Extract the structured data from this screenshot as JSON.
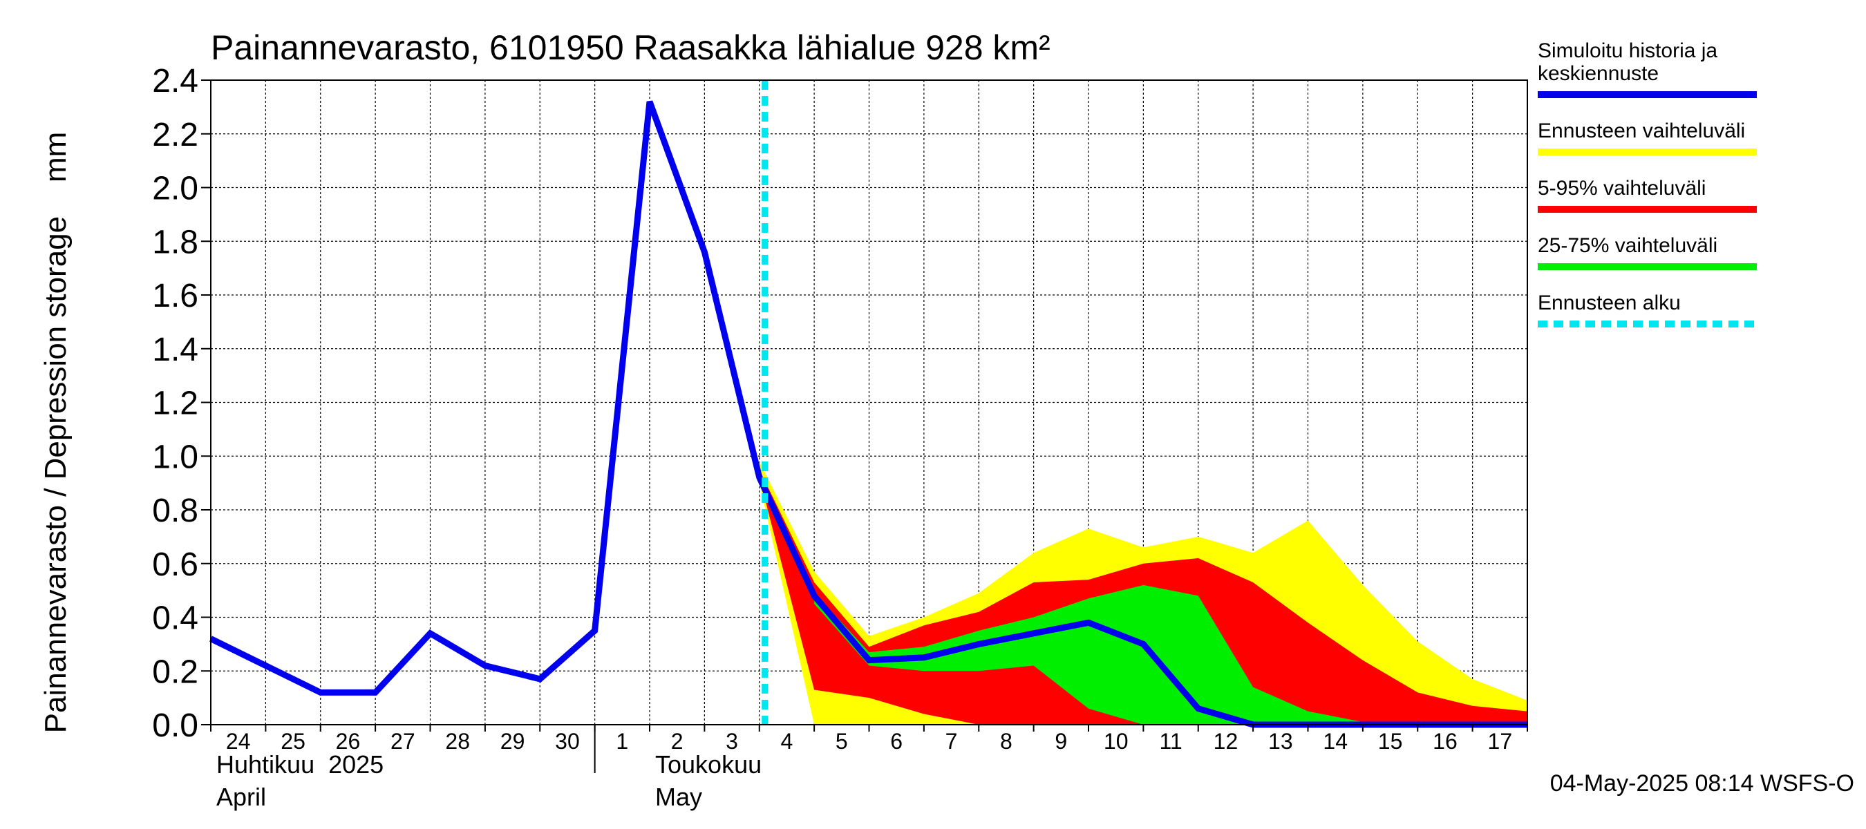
{
  "chart_data": {
    "type": "area",
    "title": "Painannevarasto, 6101950 Raasakka lähialue 928 km²",
    "ylabel": "Painannevarasto / Depression storage    mm",
    "ylim": [
      0,
      2.4
    ],
    "yticks": [
      "0.0",
      "0.2",
      "0.4",
      "0.6",
      "0.8",
      "1.0",
      "1.2",
      "1.4",
      "1.6",
      "1.8",
      "2.0",
      "2.2",
      "2.4"
    ],
    "x_range": [
      "2025-04-24",
      "2025-05-17"
    ],
    "day_labels": [
      "24",
      "25",
      "26",
      "27",
      "28",
      "29",
      "30",
      "1",
      "2",
      "3",
      "4",
      "5",
      "6",
      "7",
      "8",
      "9",
      "10",
      "11",
      "12",
      "13",
      "14",
      "15",
      "16",
      "17"
    ],
    "month_labels": [
      {
        "fi": "Huhtikuu  2025",
        "en": "April"
      },
      {
        "fi": "Toukokuu",
        "en": "May"
      }
    ],
    "grid": true,
    "legend_position": "right",
    "forecast_start": "2025-05-04",
    "series": [
      {
        "name": "Ennusteen vaihteluväli",
        "color": "#ffff00",
        "x": [
          "2025-05-04",
          "2025-05-05",
          "2025-05-06",
          "2025-05-07",
          "2025-05-08",
          "2025-05-09",
          "2025-05-10",
          "2025-05-11",
          "2025-05-12",
          "2025-05-13",
          "2025-05-14",
          "2025-05-15",
          "2025-05-16",
          "2025-05-17",
          "2025-05-18"
        ],
        "upper": [
          0.98,
          0.57,
          0.33,
          0.4,
          0.49,
          0.64,
          0.73,
          0.66,
          0.7,
          0.64,
          0.76,
          0.52,
          0.31,
          0.17,
          0.09
        ],
        "lower": [
          0.9,
          0.0,
          0.0,
          0.0,
          0.0,
          0.0,
          0.0,
          0.0,
          0.0,
          0.0,
          0.0,
          0.0,
          0.0,
          0.0,
          0.0
        ]
      },
      {
        "name": "5-95% vaihteluväli",
        "color": "#ff0000",
        "x": [
          "2025-05-04",
          "2025-05-05",
          "2025-05-06",
          "2025-05-07",
          "2025-05-08",
          "2025-05-09",
          "2025-05-10",
          "2025-05-11",
          "2025-05-12",
          "2025-05-13",
          "2025-05-14",
          "2025-05-15",
          "2025-05-16",
          "2025-05-17",
          "2025-05-18"
        ],
        "upper": [
          0.95,
          0.53,
          0.29,
          0.37,
          0.42,
          0.53,
          0.54,
          0.6,
          0.62,
          0.53,
          0.38,
          0.24,
          0.12,
          0.07,
          0.05
        ],
        "lower": [
          0.92,
          0.13,
          0.1,
          0.04,
          0.0,
          0.0,
          0.0,
          0.0,
          0.0,
          0.0,
          0.0,
          0.0,
          0.0,
          0.0,
          0.0
        ]
      },
      {
        "name": "25-75% vaihteluväli",
        "color": "#00ee00",
        "x": [
          "2025-05-05",
          "2025-05-06",
          "2025-05-07",
          "2025-05-08",
          "2025-05-09",
          "2025-05-10",
          "2025-05-11",
          "2025-05-12",
          "2025-05-13",
          "2025-05-14",
          "2025-05-15"
        ],
        "upper": [
          0.49,
          0.27,
          0.29,
          0.35,
          0.4,
          0.47,
          0.52,
          0.48,
          0.14,
          0.05,
          0.01
        ],
        "lower": [
          0.45,
          0.22,
          0.2,
          0.2,
          0.22,
          0.06,
          0.0,
          0.0,
          0.0,
          0.0,
          0.0
        ]
      },
      {
        "name": "Simuloitu historia ja keskiennuste",
        "color": "#0000ee",
        "x": [
          "2025-04-24",
          "2025-04-25",
          "2025-04-26",
          "2025-04-27",
          "2025-04-28",
          "2025-04-29",
          "2025-04-30",
          "2025-05-01",
          "2025-05-02",
          "2025-05-03",
          "2025-05-04",
          "2025-05-05",
          "2025-05-06",
          "2025-05-07",
          "2025-05-08",
          "2025-05-09",
          "2025-05-10",
          "2025-05-11",
          "2025-05-12",
          "2025-05-13",
          "2025-05-14",
          "2025-05-15",
          "2025-05-16",
          "2025-05-17",
          "2025-05-18"
        ],
        "values": [
          0.32,
          0.22,
          0.12,
          0.12,
          0.34,
          0.22,
          0.17,
          0.35,
          2.32,
          1.76,
          0.92,
          0.48,
          0.24,
          0.25,
          0.3,
          0.34,
          0.38,
          0.3,
          0.06,
          0.0,
          0.0,
          0.0,
          0.0,
          0.0,
          0.0
        ]
      }
    ],
    "legend": [
      {
        "label_lines": [
          "Simuloitu historia ja",
          "keskiennuste"
        ],
        "color": "#0000ee",
        "style": "solid"
      },
      {
        "label_lines": [
          "Ennusteen vaihteluväli"
        ],
        "color": "#ffff00",
        "style": "solid"
      },
      {
        "label_lines": [
          "5-95% vaihteluväli"
        ],
        "color": "#ff0000",
        "style": "solid"
      },
      {
        "label_lines": [
          "25-75% vaihteluväli"
        ],
        "color": "#00ee00",
        "style": "solid"
      },
      {
        "label_lines": [
          "Ennusteen alku"
        ],
        "color": "#00e5ee",
        "style": "dashed"
      }
    ],
    "footer": "04-May-2025 08:14 WSFS-O"
  }
}
